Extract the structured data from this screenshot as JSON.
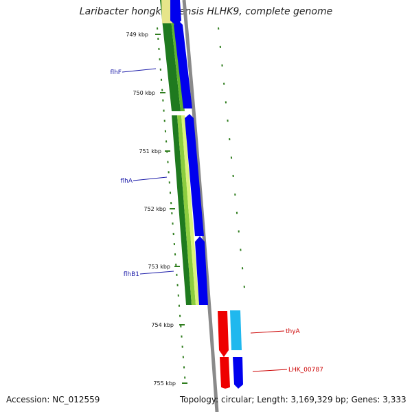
{
  "title": "Laribacter hongkongensis HLHK9, complete genome",
  "accession": "Accession: NC_012559",
  "topology": "Topology: circular; Length: 3,169,329 bp; Genes: 3,333",
  "kbp_labels": [
    "749 kbp",
    "750 kbp",
    "751 kbp",
    "752 kbp",
    "753 kbp",
    "754 kbp",
    "755 kbp"
  ],
  "genes_left": [
    "flhF",
    "flhA",
    "flhB1"
  ],
  "genes_right": [
    "thyA",
    "LHK_00787"
  ],
  "colors": {
    "backbone": "#8a8a8a",
    "forward_cds": "#0000ee",
    "reverse_cds": "#ee0000",
    "tick": "#2f7d1e",
    "left_label": "#1a1aa8",
    "right_label": "#cc0000"
  }
}
